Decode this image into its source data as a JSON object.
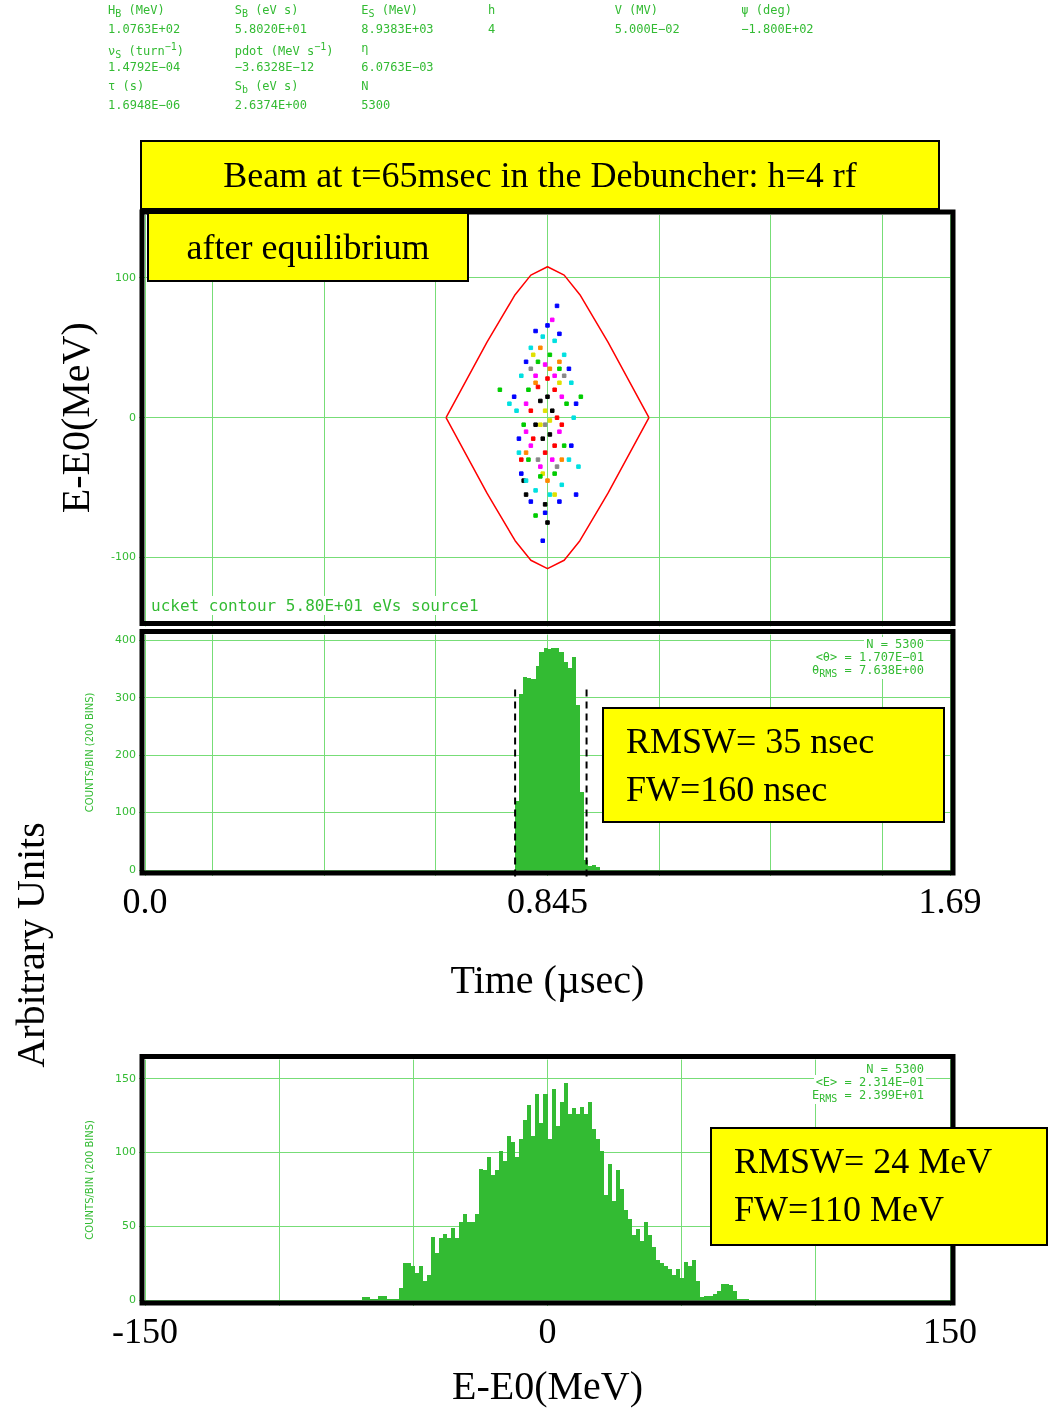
{
  "chart_data": [
    {
      "type": "other",
      "annotations": [
        "H$_{B}$ (MeV)",
        "S$_{B}$ (eV s)",
        "E$_{S}$ (MeV)",
        "h",
        "V (MV)",
        "ψ (deg)",
        "1.0763E+02",
        "5.8020E+01",
        "8.9383E+03",
        "4",
        "5.000E−02",
        "−1.800E+02",
        "ν$_{S}$ (turn$^{−1}$)",
        "pdot (MeV s$^{−1}$)",
        "η",
        "1.4792E−04",
        "−3.6328E−12",
        "6.0763E−03",
        "τ (s)",
        "S$_{b}$ (eV s)",
        "N",
        "1.6948E−06",
        "2.6374E+00",
        "5300"
      ]
    },
    {
      "type": "scatter",
      "title": "Beam at t=65msec in the Debuncher: h=4 rf",
      "subtitle": "after equilibrium",
      "ylabel": "E-E0(MeV)",
      "xlim": [
        0,
        1.69
      ],
      "ylim": [
        -145,
        145
      ],
      "xticks": [
        0,
        {
          "value": 0.141,
          "label": null
        },
        {
          "value": 0.376,
          "label": null
        },
        {
          "value": 0.61,
          "label": null
        },
        0.845,
        {
          "value": 1.08,
          "label": null
        },
        {
          "value": 1.314,
          "label": null
        },
        {
          "value": 1.549,
          "label": null
        },
        1.69
      ],
      "yticks": [
        -100,
        0,
        100
      ],
      "tick_labels": "y",
      "grid": true,
      "marker": "square",
      "annotations": [
        "ucket contour 5.80E+01 eVs source1"
      ],
      "series": [
        {
          "type": "line",
          "marker": "none",
          "color": "#ff0000",
          "x": [
            0.632,
            0.675,
            0.718,
            0.777,
            0.81,
            0.845,
            0.88,
            0.913,
            0.972,
            1.015,
            1.058
          ],
          "values": [
            0,
            27,
            54,
            88,
            102,
            108,
            102,
            88,
            54,
            27,
            0
          ]
        },
        {
          "type": "line",
          "marker": "none",
          "color": "#ff0000",
          "x": [
            0.632,
            0.675,
            0.718,
            0.777,
            0.81,
            0.845,
            0.88,
            0.913,
            0.972,
            1.015,
            1.058
          ],
          "values": [
            0,
            -27,
            -54,
            -88,
            -102,
            -108,
            -102,
            -88,
            -54,
            -27,
            0
          ]
        },
        {
          "color": "#00e0e0",
          "x": [
            0.8,
            0.82,
            0.85,
            0.875,
            0.89,
            0.9,
            0.895,
            0.88,
            0.86,
            0.835,
            0.81,
            0.79,
            0.78,
            0.785,
            0.765,
            0.91
          ],
          "values": [
            -45,
            -52,
            -55,
            -48,
            -30,
            0,
            25,
            45,
            55,
            58,
            50,
            30,
            5,
            -25,
            10,
            -35
          ]
        },
        {
          "color": "#0000ff",
          "x": [
            0.79,
            0.81,
            0.84,
            0.87,
            0.895,
            0.905,
            0.89,
            0.87,
            0.845,
            0.82,
            0.8,
            0.775,
            0.785,
            0.865,
            0.905,
            0.835
          ],
          "values": [
            -40,
            -60,
            -68,
            -60,
            -20,
            10,
            35,
            60,
            66,
            62,
            40,
            15,
            -15,
            80,
            -55,
            -88
          ]
        },
        {
          "color": "#00cc00",
          "x": [
            0.805,
            0.83,
            0.86,
            0.88,
            0.885,
            0.87,
            0.85,
            0.825,
            0.805,
            0.795,
            0.745,
            0.915,
            0.82
          ],
          "values": [
            -30,
            -42,
            -40,
            -20,
            10,
            35,
            45,
            40,
            20,
            -5,
            20,
            15,
            -70
          ]
        },
        {
          "color": "#ff00ff",
          "x": [
            0.81,
            0.83,
            0.855,
            0.87,
            0.875,
            0.86,
            0.84,
            0.82,
            0.8,
            0.8,
            0.855
          ],
          "values": [
            -20,
            -35,
            -30,
            -10,
            15,
            30,
            38,
            30,
            10,
            -10,
            70
          ]
        },
        {
          "color": "#ff0000",
          "x": [
            0.815,
            0.84,
            0.86,
            0.865,
            0.86,
            0.845,
            0.825,
            0.81,
            0.79,
            0.875
          ],
          "values": [
            -15,
            -25,
            -20,
            0,
            20,
            28,
            22,
            5,
            -30,
            -5
          ]
        },
        {
          "color": "#000000",
          "x": [
            0.82,
            0.835,
            0.85,
            0.855,
            0.845,
            0.83,
            0.795,
            0.8,
            0.845,
            0.84
          ],
          "values": [
            -5,
            -15,
            -12,
            5,
            15,
            12,
            -45,
            -55,
            -75,
            -62
          ]
        },
        {
          "color": "#e0e000",
          "x": [
            0.83,
            0.84,
            0.85,
            0.835,
            0.87,
            0.815,
            0.86
          ],
          "values": [
            -5,
            5,
            -2,
            -40,
            25,
            45,
            -55
          ]
        },
        {
          "color": "#ff8800",
          "x": [
            0.82,
            0.85,
            0.87,
            0.875,
            0.8,
            0.845,
            0.83
          ],
          "values": [
            25,
            35,
            40,
            -30,
            -25,
            -45,
            50
          ]
        },
        {
          "color": "#888888",
          "x": [
            0.84,
            0.825,
            0.865,
            0.81,
            0.88
          ],
          "values": [
            -5,
            -30,
            -35,
            35,
            30
          ]
        }
      ]
    },
    {
      "type": "histogram",
      "xlabel": "Time (µsec)",
      "ylabel": "COUNTS/BIN (200 BINS)",
      "xlim": [
        0,
        1.69
      ],
      "ylim": [
        0,
        410
      ],
      "xticks": [
        {
          "value": 0,
          "label": "0.0"
        },
        {
          "value": 0.141,
          "label": null
        },
        {
          "value": 0.376,
          "label": null
        },
        {
          "value": 0.61,
          "label": null
        },
        0.845,
        {
          "value": 1.08,
          "label": null
        },
        {
          "value": 1.314,
          "label": null
        },
        {
          "value": 1.549,
          "label": null
        },
        1.69
      ],
      "yticks": [
        0,
        100,
        200,
        300,
        400
      ],
      "grid": true,
      "color": "#33bb33",
      "bins": [
        0.777,
        0.786,
        0.794,
        0.803,
        0.811,
        0.82,
        0.828,
        0.837,
        0.845,
        0.853,
        0.862,
        0.87,
        0.879,
        0.887,
        0.896,
        0.904,
        0.913,
        0.921,
        0.93,
        0.938,
        0.946,
        0.955
      ],
      "values": [
        120,
        306,
        337,
        335,
        332,
        356,
        380,
        387,
        385,
        387,
        387,
        380,
        362,
        352,
        371,
        288,
        135,
        17,
        7,
        8,
        5
      ],
      "ref_lines": [
        {
          "axis": "x",
          "value": 0.777,
          "color": "#000000",
          "line_style": "dashed"
        },
        {
          "axis": "x",
          "value": 0.927,
          "color": "#000000",
          "line_style": "dashed"
        }
      ],
      "annotations": [
        "Arbitrary Units",
        "N = 5300",
        "<θ> = 1.707E−01",
        "θ$_{RMS}$ = 7.638E+00",
        "RMSW= 35 nsec",
        "FW=160 nsec"
      ]
    },
    {
      "type": "histogram",
      "xlabel": "E-E0(MeV)",
      "ylabel": "COUNTS/BIN (200 BINS)",
      "xlim": [
        -150,
        150
      ],
      "ylim": [
        0,
        163
      ],
      "xticks": [
        -150,
        {
          "value": -100,
          "label": null
        },
        {
          "value": -50,
          "label": null
        },
        0,
        {
          "value": 50,
          "label": null
        },
        {
          "value": 100,
          "label": null
        },
        150
      ],
      "yticks": [
        0,
        50,
        100,
        150
      ],
      "grid": true,
      "color": "#33bb33",
      "bins": [
        -69,
        -67.5,
        -66,
        -64.5,
        -63,
        -61.5,
        -60,
        -58.5,
        -57,
        -55.5,
        -54,
        -52.5,
        -51,
        -49.5,
        -48,
        -46.5,
        -45,
        -43.5,
        -42,
        -40.5,
        -39,
        -37.5,
        -36,
        -34.5,
        -33,
        -31.5,
        -30,
        -28.5,
        -27,
        -25.5,
        -24,
        -22.5,
        -21,
        -19.5,
        -18,
        -16.5,
        -15,
        -13.5,
        -12,
        -10.5,
        -9,
        -7.5,
        -6,
        -4.5,
        -3,
        -1.5,
        0,
        1.5,
        3,
        4.5,
        6,
        7.5,
        9,
        10.5,
        12,
        13.5,
        15,
        16.5,
        18,
        19.5,
        21,
        22.5,
        24,
        25.5,
        27,
        28.5,
        30,
        31.5,
        33,
        34.5,
        36,
        37.5,
        39,
        40.5,
        42,
        43.5,
        45,
        46.5,
        48,
        49.5,
        51,
        52.5,
        54,
        55.5,
        57,
        58.5,
        60,
        61.5,
        63,
        64.5,
        66,
        67.5,
        69,
        70.5,
        72,
        73.5,
        75
      ],
      "values": [
        2,
        2,
        0,
        0,
        3,
        3,
        1,
        1,
        1,
        8,
        25,
        25,
        23,
        18,
        23,
        13,
        17,
        43,
        32,
        42,
        45,
        42,
        49,
        42,
        53,
        58,
        53,
        53,
        58,
        89,
        88,
        97,
        85,
        88,
        101,
        94,
        111,
        107,
        97,
        109,
        122,
        132,
        111,
        140,
        120,
        140,
        109,
        143,
        118,
        134,
        147,
        126,
        130,
        126,
        131,
        126,
        134,
        116,
        109,
        101,
        71,
        92,
        67,
        88,
        75,
        61,
        55,
        44,
        48,
        40,
        53,
        44,
        36,
        27,
        25,
        23,
        21,
        17,
        21,
        15,
        26,
        23,
        27,
        13,
        2,
        3,
        3,
        4,
        6,
        11,
        11,
        10,
        6,
        0,
        0,
        1
      ],
      "annotations": [
        "N = 5300",
        "<E> = 2.314E−01",
        "E$_{RMS}$ = 2.399E+01",
        "RMSW= 24 MeV",
        "FW=110 MeV"
      ]
    }
  ]
}
